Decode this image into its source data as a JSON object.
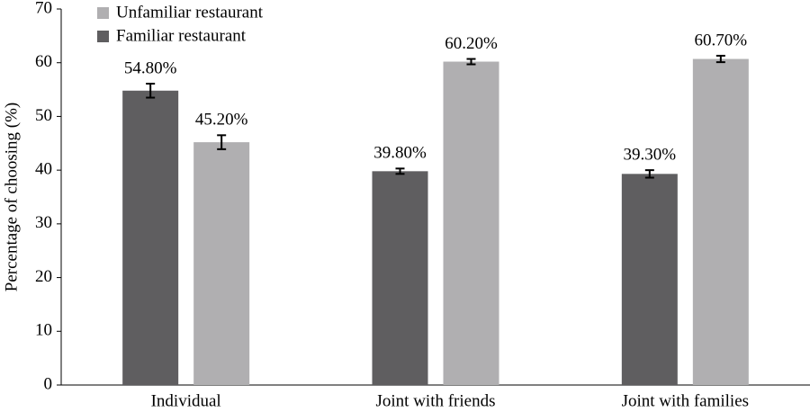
{
  "chart_data": {
    "type": "bar",
    "y_label": "Percentage of choosing (%)",
    "categories": [
      "Individual",
      "Joint with friends",
      "Joint with families"
    ],
    "series": [
      {
        "name": "Familiar restaurant",
        "color": "#5f5e60",
        "values": [
          54.8,
          39.8,
          39.3
        ],
        "value_labels": [
          "54.80%",
          "39.80%",
          "39.30%"
        ],
        "errors": [
          1.3,
          0.5,
          0.7
        ]
      },
      {
        "name": "Unfamiliar restaurant",
        "color": "#b0afb1",
        "values": [
          45.2,
          60.2,
          60.7
        ],
        "value_labels": [
          "45.20%",
          "60.20%",
          "60.70%"
        ],
        "errors": [
          1.3,
          0.5,
          0.6
        ]
      }
    ],
    "ylim": [
      0,
      70
    ],
    "yticks": [
      0,
      10,
      20,
      30,
      40,
      50,
      60,
      70
    ],
    "legend": "top-left"
  }
}
